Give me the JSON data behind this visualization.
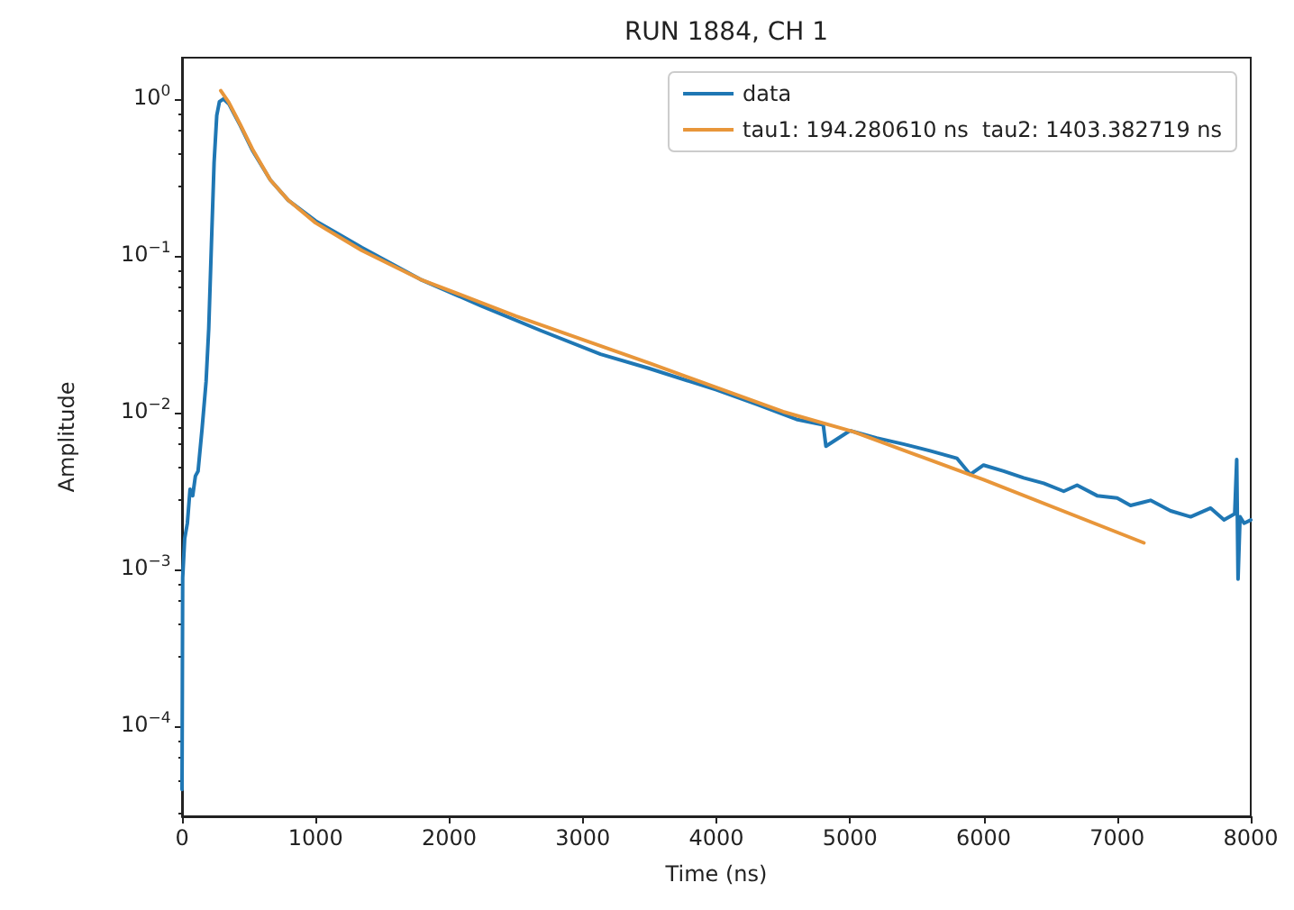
{
  "chart_data": {
    "type": "line",
    "title": "RUN 1884, CH 1",
    "xlabel": "Time (ns)",
    "ylabel": "Amplitude",
    "log": "y",
    "grid": false,
    "legend": "top right",
    "marker": "none",
    "line_style": "solid",
    "xlim": [
      0,
      8000
    ],
    "xticks": [
      0,
      1000,
      2000,
      3000,
      4000,
      5000,
      6000,
      7000,
      8000
    ],
    "ylim": [
      2.7e-05,
      1.87
    ],
    "yticks": [
      {
        "value": 0.0001,
        "label": "10$^{−4}$"
      },
      {
        "value": 0.001,
        "label": "10$^{−3}$"
      },
      {
        "value": 0.01,
        "label": "10$^{−2}$"
      },
      {
        "value": 0.1,
        "label": "10$^{−1}$"
      },
      {
        "value": 1,
        "label": "10$^{0}$"
      }
    ],
    "series": [
      {
        "name": "data",
        "color": "#1f77b4",
        "x": [
          0,
          5,
          20,
          40,
          60,
          80,
          100,
          120,
          150,
          180,
          200,
          220,
          240,
          260,
          280,
          310,
          350,
          436,
          526,
          661,
          796,
          1000,
          1346,
          1784,
          2234,
          2683,
          3133,
          3493,
          4000,
          4300,
          4600,
          4800,
          4820,
          5000,
          5200,
          5400,
          5600,
          5800,
          5900,
          6000,
          6150,
          6300,
          6450,
          6600,
          6700,
          6850,
          7000,
          7100,
          7250,
          7400,
          7550,
          7700,
          7800,
          7880,
          7895,
          7905,
          7920,
          7950,
          8000
        ],
        "values": [
          4e-05,
          0.0009,
          0.0016,
          0.002,
          0.0033,
          0.003,
          0.004,
          0.0043,
          0.008,
          0.016,
          0.035,
          0.12,
          0.4,
          0.8,
          0.98,
          1.02,
          0.95,
          0.69,
          0.48,
          0.31,
          0.23,
          0.17,
          0.115,
          0.072,
          0.049,
          0.034,
          0.024,
          0.0195,
          0.0142,
          0.0115,
          0.0092,
          0.0085,
          0.0062,
          0.0078,
          0.007,
          0.0064,
          0.0058,
          0.0052,
          0.0041,
          0.0047,
          0.0043,
          0.0039,
          0.0036,
          0.0032,
          0.0035,
          0.003,
          0.0029,
          0.0026,
          0.0028,
          0.0024,
          0.0022,
          0.0025,
          0.0021,
          0.0023,
          0.0051,
          0.00088,
          0.0022,
          0.002,
          0.0021
        ]
      },
      {
        "name": "tau1: 194.280610 ns  tau2: 1403.382719 ns",
        "color": "#e8963a",
        "x": [
          290,
          350,
          436,
          526,
          661,
          796,
          1000,
          1346,
          1784,
          2500,
          3500,
          4500,
          5020,
          6000,
          7200
        ],
        "values": [
          1.15,
          0.97,
          0.7,
          0.49,
          0.31,
          0.23,
          0.165,
          0.11,
          0.072,
          0.042,
          0.021,
          0.0103,
          0.0077,
          0.0038,
          0.0015
        ]
      }
    ]
  }
}
